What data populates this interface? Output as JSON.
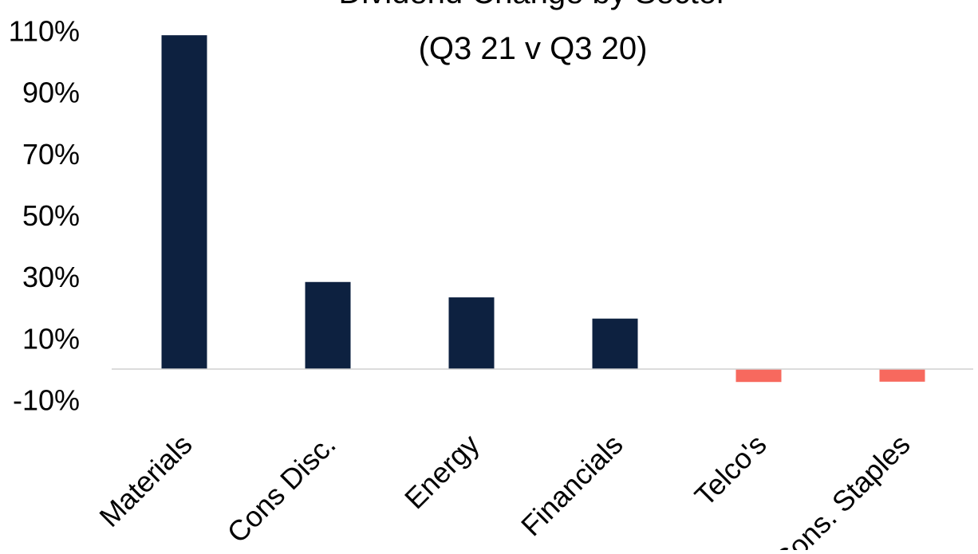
{
  "chart_data": {
    "type": "bar",
    "title_lines": [
      "Dividend Change by Sector",
      "(Q3 21 v Q3 20)"
    ],
    "categories": [
      "Materials",
      "Cons Disc.",
      "Energy",
      "Financials",
      "Telco's",
      "Cons. Staples"
    ],
    "values": [
      108.5,
      28.3,
      23.3,
      16.4,
      -4.2,
      -4.1
    ],
    "ylim": [
      -10,
      110
    ],
    "yticks": [
      -10,
      10,
      30,
      50,
      70,
      90,
      110
    ],
    "ytick_labels": [
      "-10%",
      "10%",
      "30%",
      "50%",
      "70%",
      "90%",
      "110%"
    ],
    "grid": false,
    "legend": "none",
    "colors": {
      "positive": "#0d2140",
      "negative": "#f7695e",
      "axis": "#d0d0d0"
    }
  }
}
